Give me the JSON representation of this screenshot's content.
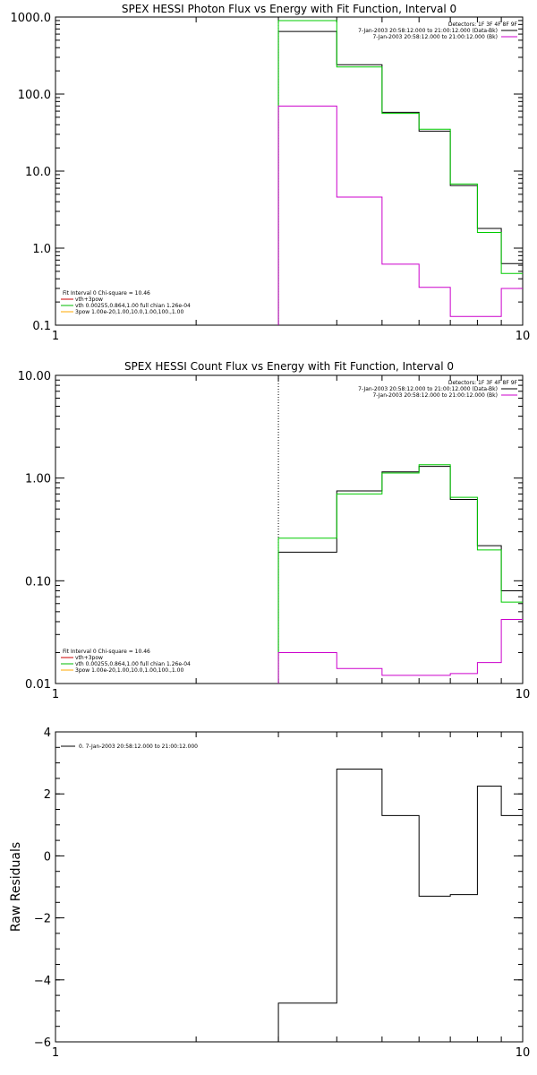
{
  "chart_data": [
    {
      "type": "line",
      "title": "SPEX HESSI Photon Flux vs Energy with Fit Function, Interval 0",
      "xlabel": "",
      "ylabel": "",
      "xscale": "log",
      "yscale": "log",
      "xlim": [
        1,
        10
      ],
      "ylim": [
        0.1,
        1000
      ],
      "x_tick_labels": [
        "1",
        "10"
      ],
      "y_tick_labels": [
        "0.1",
        "1.0",
        "10.0",
        "100.0",
        "1000.0"
      ],
      "x_tick_values": [
        1,
        10
      ],
      "y_tick_values": [
        0.1,
        1,
        10,
        100,
        1000
      ],
      "vline_x": 3,
      "legend_top": {
        "lines": [
          "Detectors: 1F 3F 4F 8F 9F",
          "7-Jan-2003 20:58:12.000 to 21:00:12.000 (Data-Bk)",
          "7-Jan-2003 20:58:12.000 to 21:00:12.000 (Bk)"
        ],
        "colors": [
          "",
          "#000000",
          "#cc00cc"
        ]
      },
      "legend_bottom": {
        "lines": [
          "Fit Interval  0    Chi-square = 10.46",
          "vth+3pow",
          "vth 0.00255,0.864,1.00  full chian 1.26e-04",
          "3pow 1.00e-20,1.00,10.0,1.00,100.,1.00"
        ],
        "colors": [
          "",
          "#cc0000",
          "#00bb00",
          "#ffaa00"
        ]
      },
      "x_edges": [
        3,
        3.5,
        4,
        4.5,
        5,
        5.5,
        6,
        6.5,
        7,
        7.5,
        8,
        8.5,
        9,
        9.5,
        10
      ],
      "series": [
        {
          "color": "#000000",
          "values": [
            650,
            650,
            240,
            240,
            58,
            58,
            33,
            33,
            6.5,
            6.5,
            1.8,
            1.8,
            0.63,
            0.63
          ]
        },
        {
          "color": "#00cc00",
          "values": [
            900,
            900,
            225,
            225,
            56,
            56,
            35,
            35,
            6.8,
            6.8,
            1.6,
            1.6,
            0.47,
            0.47
          ]
        },
        {
          "color": "#cc00cc",
          "values": [
            70,
            70,
            4.6,
            4.6,
            0.62,
            0.62,
            0.31,
            0.31,
            0.13,
            0.13,
            0.13,
            0.13,
            0.3,
            0.3
          ]
        }
      ]
    },
    {
      "type": "line",
      "title": "SPEX HESSI Count Flux vs Energy with Fit Function, Interval 0",
      "xlabel": "",
      "ylabel": "",
      "xscale": "log",
      "yscale": "log",
      "xlim": [
        1,
        10
      ],
      "ylim": [
        0.01,
        10
      ],
      "x_tick_labels": [
        "1",
        "10"
      ],
      "y_tick_labels": [
        "0.01",
        "0.10",
        "1.00",
        "10.00"
      ],
      "x_tick_values": [
        1,
        10
      ],
      "y_tick_values": [
        0.01,
        0.1,
        1,
        10
      ],
      "vline_x": 3,
      "legend_top": {
        "lines": [
          "Detectors: 1F 3F 4F 8F 9F",
          "7-Jan-2003 20:58:12.000 to 21:00:12.000 (Data-Bk)",
          "7-Jan-2003 20:58:12.000 to 21:00:12.000 (Bk)"
        ],
        "colors": [
          "",
          "#000000",
          "#cc00cc"
        ]
      },
      "legend_bottom": {
        "lines": [
          "Fit Interval  0    Chi-square = 10.46",
          "vth+3pow",
          "vth 0.00255,0.864,1.00  full chian 1.26e-04",
          "3pow 1.00e-20,1.00,10.0,1.00,100.,1.00"
        ],
        "colors": [
          "",
          "#cc0000",
          "#00bb00",
          "#ffaa00"
        ]
      },
      "x_edges": [
        3,
        4,
        5,
        6,
        7,
        8,
        9,
        10
      ],
      "series": [
        {
          "color": "#000000",
          "values": [
            0.19,
            0.75,
            1.15,
            1.3,
            0.62,
            0.22,
            0.08
          ]
        },
        {
          "color": "#00cc00",
          "values": [
            0.26,
            0.7,
            1.12,
            1.35,
            0.65,
            0.2,
            0.062
          ]
        },
        {
          "color": "#cc00cc",
          "values": [
            0.02,
            0.014,
            0.012,
            0.012,
            0.0125,
            0.016,
            0.042
          ]
        }
      ]
    },
    {
      "type": "line",
      "title": "",
      "xlabel": "",
      "ylabel": "Raw Residuals",
      "xscale": "log",
      "yscale": "linear",
      "xlim": [
        1,
        10
      ],
      "ylim": [
        -6,
        4
      ],
      "x_tick_labels": [
        "1",
        "10"
      ],
      "y_tick_labels": [
        "−6",
        "−4",
        "−2",
        "0",
        "2",
        "4"
      ],
      "x_tick_values": [
        1,
        10
      ],
      "y_tick_values": [
        -6,
        -4,
        -2,
        0,
        2,
        4
      ],
      "legend_top": {
        "lines": [
          "0.  7-Jan-2003 20:58:12.000 to 21:00:12.000"
        ],
        "colors": [
          "#000000"
        ]
      },
      "x_edges": [
        3,
        4,
        5,
        6,
        7,
        8,
        9,
        10
      ],
      "series": [
        {
          "color": "#000000",
          "values": [
            -4.75,
            2.8,
            1.3,
            -1.3,
            -1.25,
            2.25,
            1.3
          ]
        }
      ]
    }
  ]
}
